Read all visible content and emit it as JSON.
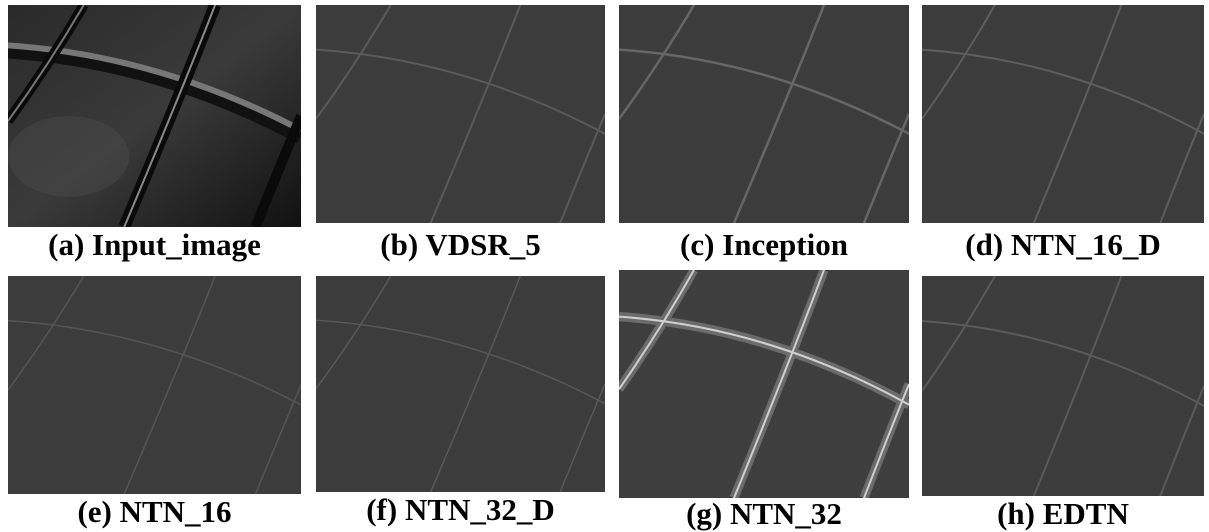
{
  "panels": [
    {
      "caption": "(a) Input_image"
    },
    {
      "caption": "(b) VDSR_5"
    },
    {
      "caption": "(c)  Inception"
    },
    {
      "caption": "(d) NTN_16_D"
    },
    {
      "caption": "(e) NTN_16"
    },
    {
      "caption": "(f) NTN_32_D"
    },
    {
      "caption": "(g) NTN_32"
    },
    {
      "caption": "(h) EDTN"
    }
  ]
}
